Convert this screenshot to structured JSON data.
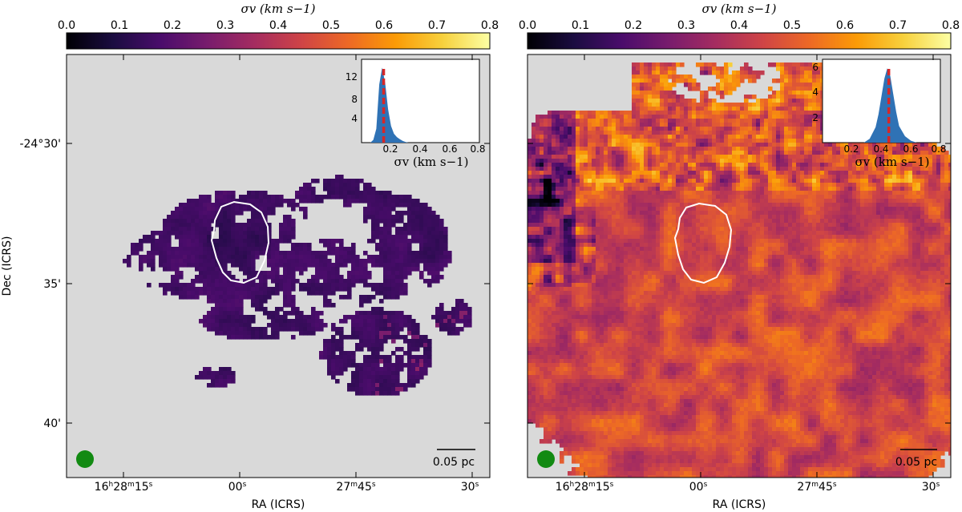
{
  "colors": {
    "background": "#d9d9d9",
    "contour": "#ffffff",
    "beam": "#128a12",
    "hist_fill": "#2f72b5",
    "median_line": "#d62728",
    "colormap": [
      "#000004",
      "#1b0c41",
      "#4a0c6b",
      "#781c6d",
      "#a52c60",
      "#cf4446",
      "#ed6925",
      "#fb9b06",
      "#f7d13d",
      "#fcffa4"
    ]
  },
  "colorbar": {
    "label": "σv (km s−1)",
    "ticks": [
      "0.0",
      "0.1",
      "0.2",
      "0.3",
      "0.4",
      "0.5",
      "0.6",
      "0.7",
      "0.8"
    ],
    "range": [
      0.0,
      0.8
    ]
  },
  "axes": {
    "xlabel": "RA (ICRS)",
    "ylabel": "Dec (ICRS)",
    "xticks": [
      "16h28m15s",
      "00s",
      "27m45s",
      "30s"
    ],
    "yticks": [
      "-24°30'",
      "35'",
      "40'"
    ]
  },
  "chart_data": [
    {
      "type": "heatmap",
      "panel": "left",
      "colorbar_label": "σv (km s−1)",
      "colorbar_range": [
        0.0,
        0.8
      ],
      "xlabel": "RA (ICRS)",
      "ylabel": "Dec (ICRS)",
      "xticks": [
        "16h28m15s",
        "00s",
        "27m45s",
        "30s"
      ],
      "yticks": [
        "-24°30'",
        "35'",
        "40'"
      ],
      "typical_value": 0.16,
      "value_spread": 0.03,
      "scalebar_label": "0.05 pc",
      "inset": {
        "type": "area",
        "xlabel": "σv (km s−1)",
        "xticks": [
          "0.2",
          "0.4",
          "0.6",
          "0.8"
        ],
        "yticks": [
          "4",
          "8",
          "12"
        ],
        "xlim": [
          0.0,
          0.8
        ],
        "ylim": [
          0,
          15
        ],
        "x": [
          0.06,
          0.08,
          0.1,
          0.12,
          0.14,
          0.16,
          0.18,
          0.2,
          0.22,
          0.24,
          0.26,
          0.28,
          0.3,
          0.32
        ],
        "y": [
          0,
          0.5,
          2.5,
          10.5,
          13.5,
          10.8,
          6.0,
          3.0,
          1.6,
          1.0,
          0.6,
          0.3,
          0.1,
          0
        ],
        "median": 0.15
      }
    },
    {
      "type": "heatmap",
      "panel": "right",
      "colorbar_label": "σv (km s−1)",
      "colorbar_range": [
        0.0,
        0.8
      ],
      "xlabel": "RA (ICRS)",
      "xticks": [
        "16h28m15s",
        "00s",
        "27m45s",
        "30s"
      ],
      "typical_value": 0.45,
      "value_spread": 0.1,
      "scalebar_label": "0.05 pc",
      "inset": {
        "type": "area",
        "xlabel": "σv (km s−1)",
        "xticks": [
          "0.2",
          "0.4",
          "0.6",
          "0.8"
        ],
        "yticks": [
          "2",
          "4",
          "6"
        ],
        "xlim": [
          0.0,
          0.8
        ],
        "ylim": [
          0,
          6.5
        ],
        "x": [
          0.28,
          0.32,
          0.36,
          0.38,
          0.4,
          0.42,
          0.44,
          0.46,
          0.48,
          0.5,
          0.52,
          0.56,
          0.6,
          0.64
        ],
        "y": [
          0,
          0.3,
          1.2,
          2.2,
          3.6,
          5.0,
          5.8,
          5.2,
          3.8,
          2.4,
          1.3,
          0.5,
          0.15,
          0
        ],
        "median": 0.45
      }
    }
  ]
}
